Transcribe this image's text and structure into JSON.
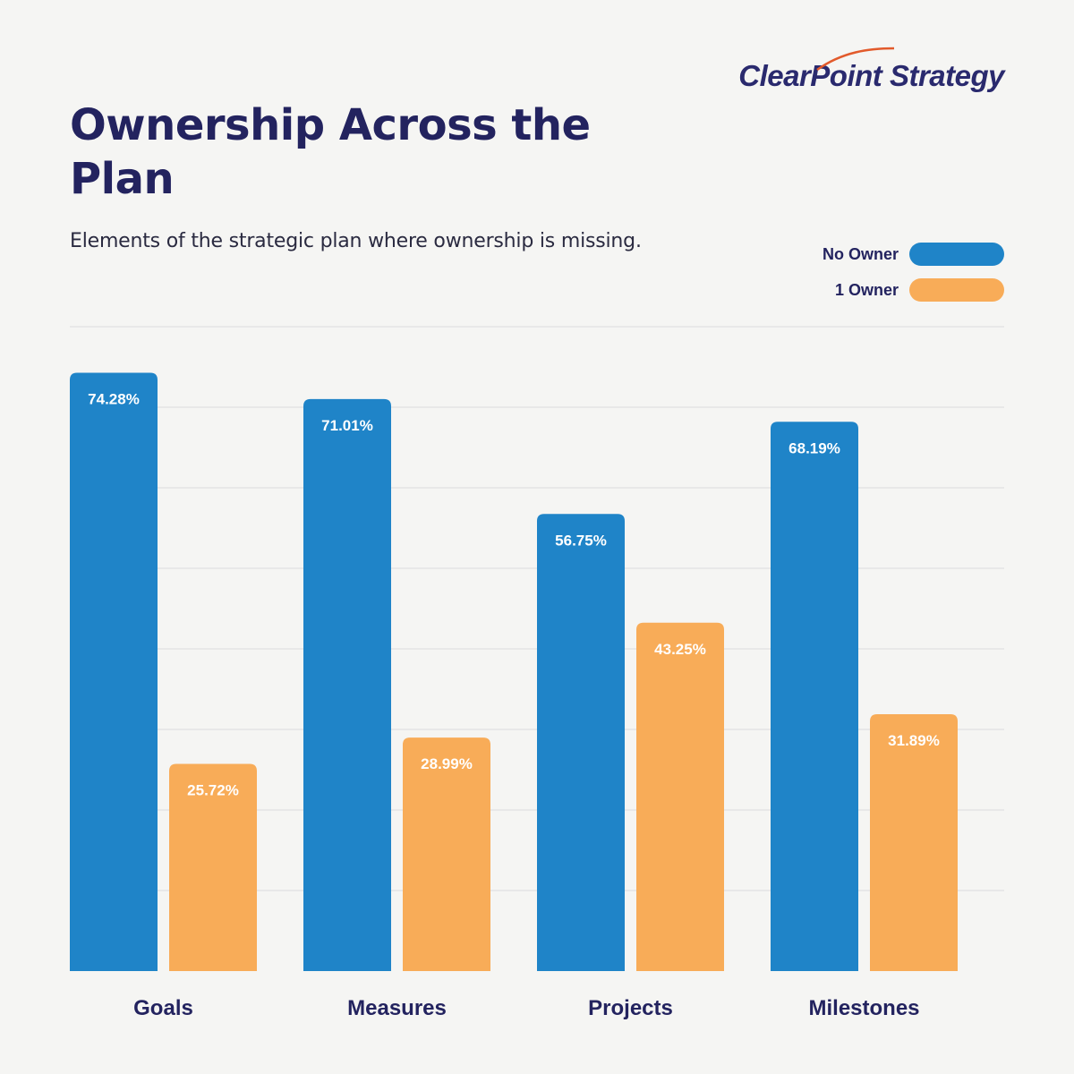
{
  "brand": {
    "logo_text": "ClearPoint Strategy"
  },
  "colors": {
    "no_owner": "#1f84c8",
    "one_owner": "#f8ac58",
    "title": "#23235f",
    "background": "#f5f5f3"
  },
  "chart_data": {
    "type": "bar",
    "title": "Ownership Across the Plan",
    "subtitle": "Elements of the strategic plan where ownership is missing.",
    "categories": [
      "Goals",
      "Measures",
      "Projects",
      "Milestones"
    ],
    "series": [
      {
        "name": "No Owner",
        "values": [
          74.28,
          71.01,
          56.75,
          68.19
        ],
        "labels": [
          "74.28%",
          "71.01%",
          "56.75%",
          "68.19%"
        ]
      },
      {
        "name": "1 Owner",
        "values": [
          25.72,
          28.99,
          43.25,
          31.89
        ],
        "labels": [
          "25.72%",
          "28.99%",
          "43.25%",
          "31.89%"
        ]
      }
    ],
    "ylim": [
      0,
      80
    ],
    "grid": true,
    "legend_position": "top-right"
  }
}
